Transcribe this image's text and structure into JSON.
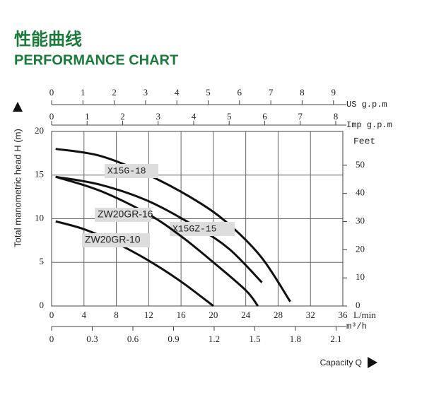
{
  "chart_data": {
    "type": "line",
    "title": "性能曲线",
    "subtitle": "PERFORMANCE CHART",
    "y_label": "Total manometric head H (m)",
    "x_label": "Capacity Q",
    "x_unit": "L/min",
    "xlim": [
      0,
      36
    ],
    "xticks": [
      0,
      4,
      8,
      12,
      16,
      20,
      24,
      28,
      32,
      36
    ],
    "ylim": [
      0,
      20
    ],
    "yticks": [
      0,
      5,
      10,
      15,
      20
    ],
    "grid": true,
    "us_gpm_axis": {
      "label": "US g.p.m",
      "lim": [
        0,
        9.3
      ],
      "ticks": [
        0,
        1,
        2,
        3,
        4,
        5,
        6,
        7,
        8,
        9
      ]
    },
    "imp_gpm_axis": {
      "label": "Imp g.p.m",
      "lim": [
        0,
        8.2
      ],
      "ticks": [
        0,
        1,
        2,
        3,
        4,
        5,
        6,
        7,
        8
      ]
    },
    "m3h_axis": {
      "label": "m³/h",
      "lim": [
        0,
        2.15
      ],
      "ticks": [
        0,
        0.3,
        0.6,
        0.9,
        1.2,
        1.5,
        1.8,
        2.1
      ]
    },
    "feet_axis": {
      "label": "Feet",
      "lim": [
        0,
        62
      ],
      "ticks": [
        0,
        10,
        20,
        30,
        40,
        50
      ]
    },
    "series": [
      {
        "name": "X15G-18",
        "color": "#111111",
        "x": [
          0.5,
          6,
          12,
          18,
          22,
          26,
          29.5
        ],
        "values": [
          18,
          17.2,
          15,
          12,
          9.3,
          5.5,
          0.5
        ]
      },
      {
        "name": "X15GZ-15",
        "color": "#111111",
        "x": [
          0.5,
          6,
          12,
          18,
          22,
          26
        ],
        "values": [
          14.8,
          13.9,
          12,
          9,
          6.5,
          2.7
        ]
      },
      {
        "name": "ZW20GR-16",
        "color": "#111111",
        "x": [
          0.5,
          6,
          12,
          16,
          20,
          24,
          25.5
        ],
        "values": [
          14.8,
          13.2,
          10.5,
          8,
          5,
          1.8,
          0
        ]
      },
      {
        "name": "ZW20GR-10",
        "color": "#111111",
        "x": [
          0.5,
          4,
          8,
          12,
          16,
          20
        ],
        "values": [
          9.7,
          8.8,
          7.2,
          5.2,
          2.8,
          0
        ]
      }
    ]
  }
}
